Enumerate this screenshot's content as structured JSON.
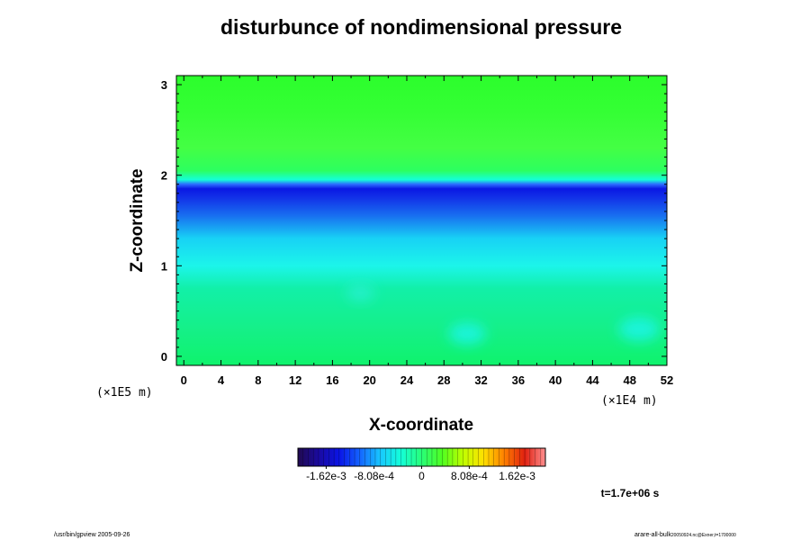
{
  "chart_data": {
    "type": "heatmap",
    "title": "disturbunce of nondimensional pressure",
    "xlabel": "X-coordinate",
    "ylabel": "Z-coordinate",
    "x_unit_label": "(×1E4 m)",
    "y_unit_label": "(×1E5 m)",
    "x_ticks": [
      0,
      4,
      8,
      12,
      16,
      20,
      24,
      28,
      32,
      36,
      40,
      44,
      48,
      52
    ],
    "y_ticks": [
      0,
      1,
      2,
      3
    ],
    "xlim": [
      -0.8,
      52
    ],
    "ylim": [
      -0.1,
      3.1
    ],
    "profile": {
      "z": [
        -0.1,
        0.3,
        0.75,
        1.0,
        1.3,
        1.55,
        1.75,
        1.85,
        1.9,
        1.95,
        2.05,
        2.3,
        2.7,
        3.1
      ],
      "color": [
        "#0ff36c",
        "#15f088",
        "#12f0a8",
        "#1cf5ea",
        "#18d2f5",
        "#1870f0",
        "#1232e8",
        "#0a18e4",
        "#2c6cff",
        "#14ffd8",
        "#2cff60",
        "#44ff44",
        "#34ff34",
        "#2cfe2c"
      ]
    },
    "spots": [
      {
        "x": 30.5,
        "z": 0.25,
        "r": 2.0,
        "color": "#1ef5f5"
      },
      {
        "x": 49.0,
        "z": 0.3,
        "r": 2.2,
        "color": "#1ef5f5"
      },
      {
        "x": 19.0,
        "z": 0.7,
        "r": 1.5,
        "color": "#2bf0d8"
      }
    ],
    "colorbar": {
      "min": -0.0021,
      "max": 0.0021,
      "colors": [
        "#200a50",
        "#1a0aa0",
        "#0a14e6",
        "#1464ff",
        "#18c8ff",
        "#14ffd8",
        "#28ff78",
        "#50ff20",
        "#c0ff00",
        "#ffe000",
        "#ff8000",
        "#e02010",
        "#ff9090"
      ],
      "tick_values": [
        -0.00162,
        -0.000808,
        0,
        0.000808,
        0.00162
      ],
      "tick_labels": [
        "-1.62e-3",
        "-8.08e-4",
        "0",
        "8.08e-4",
        "1.62e-3"
      ]
    },
    "time_label": "t=1.7e+06 s",
    "grid": false
  },
  "footer": {
    "left": "/usr/bin/gpview 2005-09-26",
    "right_main": "arare-all-bulk",
    "right_small": "20050924.nc@Exner,t=1700000"
  }
}
